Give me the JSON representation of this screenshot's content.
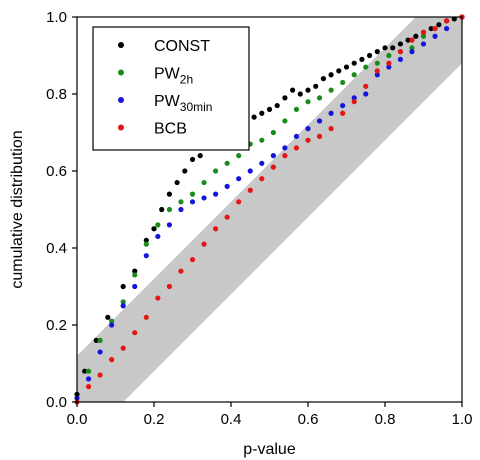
{
  "chart_data": {
    "type": "scatter",
    "title": "",
    "xlabel": "p-value",
    "ylabel": "cumulative distribution",
    "xlim": [
      0,
      1
    ],
    "ylim": [
      0,
      1
    ],
    "xticks": [
      "0.0",
      "0.2",
      "0.4",
      "0.6",
      "0.8",
      "1.0"
    ],
    "yticks": [
      "0.0",
      "0.2",
      "0.4",
      "0.6",
      "0.8",
      "1.0"
    ],
    "grid": false,
    "legend_position": "top-left",
    "confidence_band": {
      "color": "#c8c8c8",
      "halfwidth": 0.12
    },
    "series": [
      {
        "name": "CONST",
        "sub": "",
        "color": "#000000",
        "x": [
          0.0,
          0.02,
          0.05,
          0.08,
          0.12,
          0.15,
          0.18,
          0.2,
          0.22,
          0.24,
          0.26,
          0.28,
          0.3,
          0.32,
          0.34,
          0.36,
          0.38,
          0.4,
          0.42,
          0.44,
          0.46,
          0.48,
          0.5,
          0.52,
          0.54,
          0.56,
          0.58,
          0.6,
          0.62,
          0.64,
          0.66,
          0.68,
          0.7,
          0.72,
          0.74,
          0.76,
          0.78,
          0.8,
          0.82,
          0.84,
          0.86,
          0.88,
          0.9,
          0.92,
          0.94,
          0.96,
          0.98,
          1.0
        ],
        "y": [
          0.02,
          0.08,
          0.16,
          0.22,
          0.3,
          0.34,
          0.42,
          0.45,
          0.5,
          0.54,
          0.57,
          0.6,
          0.63,
          0.64,
          0.66,
          0.67,
          0.68,
          0.7,
          0.72,
          0.73,
          0.74,
          0.75,
          0.76,
          0.77,
          0.79,
          0.81,
          0.8,
          0.81,
          0.82,
          0.84,
          0.85,
          0.86,
          0.87,
          0.88,
          0.89,
          0.9,
          0.91,
          0.92,
          0.92,
          0.93,
          0.94,
          0.95,
          0.96,
          0.97,
          0.98,
          0.99,
          0.995,
          1.0
        ]
      },
      {
        "name": "PW",
        "sub": "2h",
        "color": "#1a8c1a",
        "x": [
          0.0,
          0.03,
          0.06,
          0.09,
          0.12,
          0.15,
          0.18,
          0.21,
          0.24,
          0.27,
          0.3,
          0.33,
          0.36,
          0.39,
          0.42,
          0.45,
          0.48,
          0.51,
          0.54,
          0.57,
          0.6,
          0.63,
          0.66,
          0.69,
          0.72,
          0.75,
          0.78,
          0.81,
          0.84,
          0.87,
          0.9,
          0.93,
          0.96,
          1.0
        ],
        "y": [
          0.01,
          0.08,
          0.16,
          0.21,
          0.26,
          0.33,
          0.41,
          0.46,
          0.5,
          0.52,
          0.54,
          0.57,
          0.6,
          0.62,
          0.64,
          0.67,
          0.68,
          0.7,
          0.73,
          0.76,
          0.78,
          0.79,
          0.81,
          0.83,
          0.85,
          0.87,
          0.88,
          0.9,
          0.91,
          0.92,
          0.95,
          0.97,
          0.99,
          1.0
        ]
      },
      {
        "name": "PW",
        "sub": "30min",
        "color": "#1414dc",
        "x": [
          0.0,
          0.03,
          0.06,
          0.09,
          0.12,
          0.15,
          0.18,
          0.21,
          0.24,
          0.27,
          0.3,
          0.33,
          0.36,
          0.39,
          0.42,
          0.45,
          0.48,
          0.51,
          0.54,
          0.57,
          0.6,
          0.63,
          0.66,
          0.69,
          0.72,
          0.75,
          0.78,
          0.81,
          0.84,
          0.87,
          0.9,
          0.93,
          0.96,
          1.0
        ],
        "y": [
          0.01,
          0.06,
          0.13,
          0.2,
          0.25,
          0.3,
          0.38,
          0.43,
          0.46,
          0.5,
          0.52,
          0.53,
          0.54,
          0.56,
          0.58,
          0.6,
          0.62,
          0.64,
          0.66,
          0.69,
          0.71,
          0.73,
          0.75,
          0.77,
          0.79,
          0.8,
          0.85,
          0.87,
          0.89,
          0.91,
          0.93,
          0.95,
          0.97,
          1.0
        ]
      },
      {
        "name": "BCB",
        "sub": "",
        "color": "#e61414",
        "x": [
          0.0,
          0.03,
          0.06,
          0.09,
          0.12,
          0.15,
          0.18,
          0.21,
          0.24,
          0.27,
          0.3,
          0.33,
          0.36,
          0.39,
          0.42,
          0.45,
          0.48,
          0.51,
          0.54,
          0.57,
          0.6,
          0.63,
          0.66,
          0.69,
          0.72,
          0.75,
          0.78,
          0.81,
          0.84,
          0.87,
          0.9,
          0.93,
          0.96,
          1.0
        ],
        "y": [
          0.0,
          0.04,
          0.07,
          0.11,
          0.14,
          0.18,
          0.22,
          0.27,
          0.3,
          0.34,
          0.37,
          0.41,
          0.45,
          0.48,
          0.52,
          0.55,
          0.58,
          0.61,
          0.64,
          0.66,
          0.68,
          0.69,
          0.71,
          0.75,
          0.78,
          0.82,
          0.86,
          0.88,
          0.91,
          0.94,
          0.96,
          0.97,
          0.99,
          1.0
        ]
      }
    ]
  }
}
